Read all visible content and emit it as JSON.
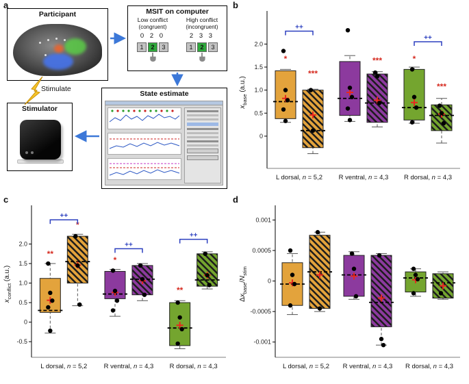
{
  "figure": {
    "panel_labels": {
      "a": "a",
      "b": "b",
      "c": "c",
      "d": "d"
    }
  },
  "panel_a": {
    "participant": {
      "title": "Participant"
    },
    "msit": {
      "title": "MSIT on computer",
      "low": {
        "name": "Low conflict",
        "type": "(congruent)",
        "stimulus": "0 2 0",
        "keys": [
          "1",
          "2",
          "3"
        ]
      },
      "high": {
        "name": "High conflict",
        "type": "(incongruent)",
        "stimulus": "2 3 3",
        "keys": [
          "1",
          "2",
          "3"
        ]
      }
    },
    "state_estimate": {
      "title": "State estimate"
    },
    "stimulator": {
      "title": "Stimulator"
    },
    "stimulate_label": "Stimulate",
    "colors": {
      "arrow_blue": "#3C78D8",
      "lightning_yellow": "#F7C52B",
      "key_highlight_green": "#2FA83C"
    }
  },
  "chart_data": [
    {
      "panel": "b",
      "type": "box",
      "ylabel_parts": [
        {
          "t": "x",
          "i": 1
        },
        {
          "t": "base",
          "sub": 1
        },
        {
          "t": " (a.u.)"
        }
      ],
      "ylim": [
        -0.7,
        2.6
      ],
      "yticks": [
        {
          "v": 0,
          "t": "0"
        },
        {
          "v": 0.5,
          "t": "0.5"
        },
        {
          "v": 1.0,
          "t": "1.0"
        },
        {
          "v": 1.5,
          "t": "1.5"
        },
        {
          "v": 2.0,
          "t": "2.0"
        }
      ],
      "sig_color": "#D62B20",
      "bracket_color": "#2B3FBF",
      "groups": [
        {
          "label_parts": [
            {
              "t": "L dorsal, "
            },
            {
              "t": "n",
              "i": 1
            },
            {
              "t": " = 5,2"
            }
          ],
          "color": "#E3A33C",
          "boxes": [
            {
              "style": "solid",
              "lo": 0.3,
              "q1": 0.38,
              "median": 0.75,
              "q3": 1.42,
              "hi": 1.45,
              "mean": 0.82,
              "points": [
                1.85,
                1.0,
                0.78,
                0.58,
                0.33
              ],
              "sig": "*",
              "sig_y": 1.62
            },
            {
              "style": "hatched",
              "lo": -0.38,
              "q1": -0.25,
              "median": 0.12,
              "q3": 1.0,
              "hi": 1.02,
              "mean": 0.46,
              "points": [
                1.0,
                0.12
              ],
              "sig": "***",
              "sig_y": 1.3
            }
          ],
          "bracket": {
            "y": 2.28,
            "label": "++"
          }
        },
        {
          "label_parts": [
            {
              "t": "R ventral, "
            },
            {
              "t": "n",
              "i": 1
            },
            {
              "t": " = 4,3"
            }
          ],
          "color": "#8C3A9E",
          "boxes": [
            {
              "style": "solid",
              "lo": 0.32,
              "q1": 0.45,
              "median": 0.82,
              "q3": 1.62,
              "hi": 1.75,
              "mean": 0.95,
              "points": [
                2.3,
                1.05,
                0.85,
                0.6,
                0.35
              ]
            },
            {
              "style": "hatched",
              "lo": 0.2,
              "q1": 0.3,
              "median": 0.72,
              "q3": 1.35,
              "hi": 1.4,
              "mean": 0.78,
              "points": [
                1.38,
                1.3,
                0.72
              ],
              "sig": "***",
              "sig_y": 1.58
            }
          ]
        },
        {
          "label_parts": [
            {
              "t": "R dorsal, "
            },
            {
              "t": "n",
              "i": 1
            },
            {
              "t": " = 4,3"
            }
          ],
          "color": "#74A52F",
          "boxes": [
            {
              "style": "solid",
              "lo": 0.28,
              "q1": 0.35,
              "median": 0.62,
              "q3": 1.45,
              "hi": 1.5,
              "mean": 0.73,
              "points": [
                1.45,
                0.85,
                0.62,
                0.3
              ],
              "sig": "*",
              "sig_y": 1.62
            },
            {
              "style": "hatched",
              "lo": -0.15,
              "q1": 0.12,
              "median": 0.45,
              "q3": 0.68,
              "hi": 0.82,
              "mean": 0.48,
              "points": [
                0.66,
                0.5,
                0.28
              ],
              "sig": "***",
              "sig_y": 1.02
            }
          ],
          "bracket": {
            "y": 2.05,
            "label": "++"
          }
        }
      ]
    },
    {
      "panel": "c",
      "type": "box",
      "ylabel_parts": [
        {
          "t": "x",
          "i": 1
        },
        {
          "t": "conflict",
          "sub": 1
        },
        {
          "t": " (a.u.)"
        }
      ],
      "ylim": [
        -0.9,
        2.85
      ],
      "yticks": [
        {
          "v": -0.5,
          "t": "-0.5"
        },
        {
          "v": 0,
          "t": "0"
        },
        {
          "v": 0.5,
          "t": "0.5"
        },
        {
          "v": 1.0,
          "t": "1.0"
        },
        {
          "v": 1.5,
          "t": "1.5"
        },
        {
          "v": 2.0,
          "t": "2.0"
        }
      ],
      "sig_color": "#D62B20",
      "bracket_color": "#2B3FBF",
      "groups": [
        {
          "label_parts": [
            {
              "t": "L dorsal, "
            },
            {
              "t": "n",
              "i": 1
            },
            {
              "t": " = 5,2"
            }
          ],
          "color": "#E3A33C",
          "boxes": [
            {
              "style": "solid",
              "lo": -0.28,
              "q1": 0.25,
              "median": 0.3,
              "q3": 1.12,
              "hi": 1.5,
              "mean": 0.56,
              "points": [
                1.5,
                0.75,
                0.55,
                0.38,
                -0.22
              ],
              "sig": "**",
              "sig_y": 1.68
            },
            {
              "style": "hatched",
              "lo": 0.42,
              "q1": 1.0,
              "median": 1.55,
              "q3": 2.2,
              "hi": 2.25,
              "mean": 1.46,
              "points": [
                2.2,
                1.45,
                0.45
              ],
              "sig": "*",
              "sig_y": 2.42
            }
          ],
          "bracket": {
            "y": 2.62,
            "label": "++"
          }
        },
        {
          "label_parts": [
            {
              "t": "R ventral, "
            },
            {
              "t": "n",
              "i": 1
            },
            {
              "t": " = 4,3"
            }
          ],
          "color": "#8C3A9E",
          "boxes": [
            {
              "style": "solid",
              "lo": 0.15,
              "q1": 0.6,
              "median": 0.72,
              "q3": 1.3,
              "hi": 1.35,
              "mean": 0.76,
              "points": [
                1.32,
                0.8,
                0.55,
                0.3
              ],
              "sig": "*",
              "sig_y": 1.52
            },
            {
              "style": "hatched",
              "lo": 0.55,
              "q1": 0.7,
              "median": 1.1,
              "q3": 1.45,
              "hi": 1.5,
              "mean": 1.06,
              "points": [
                1.45,
                1.1,
                0.7
              ]
            }
          ],
          "bracket": {
            "y": 1.88,
            "label": "++"
          }
        },
        {
          "label_parts": [
            {
              "t": "R dorsal, "
            },
            {
              "t": "n",
              "i": 1
            },
            {
              "t": " = 4,3"
            }
          ],
          "color": "#74A52F",
          "boxes": [
            {
              "style": "solid",
              "lo": -0.68,
              "q1": -0.6,
              "median": -0.15,
              "q3": 0.5,
              "hi": 0.55,
              "mean": -0.08,
              "points": [
                0.5,
                0.12,
                -0.18,
                -0.55
              ],
              "sig": "**",
              "sig_y": 0.75
            },
            {
              "style": "hatched",
              "lo": 0.85,
              "q1": 0.92,
              "median": 1.08,
              "q3": 1.75,
              "hi": 1.8,
              "mean": 1.2,
              "points": [
                1.75,
                1.2,
                0.95
              ]
            }
          ],
          "bracket": {
            "y": 2.12,
            "label": "++"
          }
        }
      ]
    },
    {
      "panel": "d",
      "type": "box",
      "ylabel_parts": [
        {
          "t": "Δ"
        },
        {
          "t": "x",
          "i": 1
        },
        {
          "t": "base",
          "sub": 1
        },
        {
          "t": "/"
        },
        {
          "t": "N",
          "i": 1
        },
        {
          "t": "stim",
          "sub": 1
        }
      ],
      "ylim": [
        -0.00125,
        0.00115
      ],
      "yticks": [
        {
          "v": -0.001,
          "t": "-0.001"
        },
        {
          "v": -0.0005,
          "t": "-0.0005"
        },
        {
          "v": 0,
          "t": "0"
        },
        {
          "v": 0.0005,
          "t": "0.0005"
        },
        {
          "v": 0.001,
          "t": "0.001"
        }
      ],
      "sig_color": "#D62B20",
      "bracket_color": "#2B3FBF",
      "groups": [
        {
          "label_parts": [
            {
              "t": "L dorsal, "
            },
            {
              "t": "n",
              "i": 1
            },
            {
              "t": " = 5,2"
            }
          ],
          "color": "#E3A33C",
          "boxes": [
            {
              "style": "solid",
              "lo": -0.00055,
              "q1": -0.0004,
              "median": -5e-05,
              "q3": 0.0003,
              "hi": 0.00045,
              "mean": -3e-05,
              "points": [
                0.0005,
                0.0001,
                -5e-05,
                -0.0004
              ]
            },
            {
              "style": "hatched",
              "lo": -0.0005,
              "q1": -0.00045,
              "median": 0.00015,
              "q3": 0.00075,
              "hi": 0.0008,
              "mean": 0.0001,
              "points": [
                0.0008,
                -0.00045
              ]
            }
          ]
        },
        {
          "label_parts": [
            {
              "t": "R ventral, "
            },
            {
              "t": "n",
              "i": 1
            },
            {
              "t": " = 4,3"
            }
          ],
          "color": "#8C3A9E",
          "boxes": [
            {
              "style": "solid",
              "lo": -0.0003,
              "q1": -0.00025,
              "median": 0.0001,
              "q3": 0.00042,
              "hi": 0.00048,
              "mean": 8e-05,
              "points": [
                0.00045,
                0.0002,
                -0.00025
              ]
            },
            {
              "style": "hatched",
              "lo": -0.00105,
              "q1": -0.00075,
              "median": -0.00035,
              "q3": 0.00042,
              "hi": 0.00045,
              "mean": -0.00028,
              "points": [
                0.00042,
                -0.00095,
                -0.00105
              ]
            }
          ]
        },
        {
          "label_parts": [
            {
              "t": "R dorsal, "
            },
            {
              "t": "n",
              "i": 1
            },
            {
              "t": " = 4,3"
            }
          ],
          "color": "#74A52F",
          "boxes": [
            {
              "style": "solid",
              "lo": -0.00025,
              "q1": -0.00018,
              "median": 5e-05,
              "q3": 0.00015,
              "hi": 0.0002,
              "mean": 2e-05,
              "points": [
                0.0002,
                0.0001,
                3e-05,
                -0.0002
              ]
            },
            {
              "style": "hatched",
              "lo": -0.0003,
              "q1": -0.00028,
              "median": -3e-05,
              "q3": 0.00012,
              "hi": 0.00015,
              "mean": -8e-05,
              "points": [
                -0.0002
              ]
            }
          ]
        }
      ]
    }
  ]
}
